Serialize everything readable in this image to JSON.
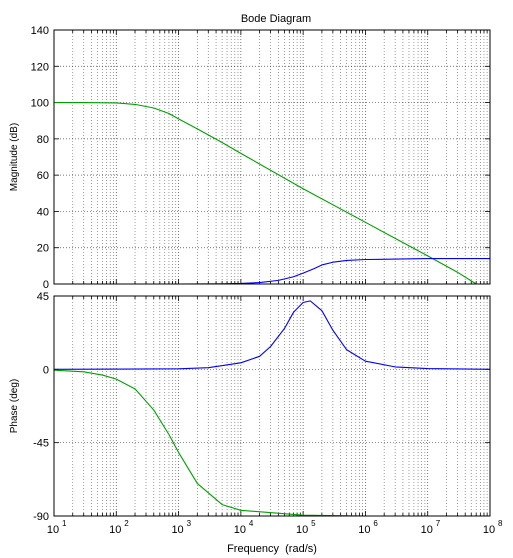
{
  "chart_data": [
    {
      "type": "line",
      "title": "Bode Diagram",
      "xlabel": "",
      "ylabel": "Magnitude (dB)",
      "x_scale": "log",
      "xlim": [
        10,
        100000000
      ],
      "ylim": [
        0,
        140
      ],
      "y_ticks": [
        "0",
        "20",
        "40",
        "60",
        "80",
        "100",
        "120",
        "140"
      ],
      "grid": true,
      "series": [
        {
          "color": "#00a000",
          "x": [
            10,
            30,
            100,
            200,
            400,
            700,
            1000,
            2000,
            5000,
            10000,
            100000,
            1000000,
            10000000,
            30000000,
            60000000
          ],
          "y": [
            100,
            100,
            99.8,
            99,
            97,
            94,
            91,
            85.5,
            78,
            72,
            52.5,
            34,
            15.5,
            6.5,
            0
          ]
        },
        {
          "color": "#0000ff",
          "x": [
            10,
            1000,
            5000,
            10000,
            20000,
            40000,
            70000,
            100000,
            150000,
            200000,
            300000,
            500000,
            1000000,
            10000000,
            100000000
          ],
          "y": [
            0,
            0,
            0.1,
            0.3,
            0.8,
            2,
            4,
            6,
            8.5,
            10.5,
            12,
            13,
            13.5,
            14,
            14
          ]
        }
      ]
    },
    {
      "type": "line",
      "xlabel": "Frequency  (rad/s)",
      "ylabel": "Phase (deg)",
      "x_scale": "log",
      "xlim": [
        10,
        100000000
      ],
      "ylim": [
        -90,
        45
      ],
      "y_ticks": [
        "-90",
        "-45",
        "0",
        "45"
      ],
      "x_ticks": [
        {
          "base": "10",
          "exp": "1"
        },
        {
          "base": "10",
          "exp": "2"
        },
        {
          "base": "10",
          "exp": "3"
        },
        {
          "base": "10",
          "exp": "4"
        },
        {
          "base": "10",
          "exp": "5"
        },
        {
          "base": "10",
          "exp": "6"
        },
        {
          "base": "10",
          "exp": "7"
        },
        {
          "base": "10",
          "exp": "8"
        }
      ],
      "grid": true,
      "series": [
        {
          "color": "#00a000",
          "x": [
            10,
            30,
            60,
            100,
            200,
            400,
            700,
            1000,
            2000,
            5000,
            10000,
            100000,
            1000000,
            100000000
          ],
          "y": [
            -0.5,
            -1.5,
            -3.5,
            -6,
            -12,
            -25,
            -40,
            -51,
            -70,
            -83,
            -86.5,
            -89.5,
            -90,
            -90
          ]
        },
        {
          "color": "#0000ff",
          "x": [
            10,
            1000,
            3000,
            10000,
            20000,
            30000,
            50000,
            70000,
            100000,
            130000,
            200000,
            300000,
            500000,
            1000000,
            3000000,
            10000000,
            100000000
          ],
          "y": [
            0,
            0.3,
            1,
            4,
            8,
            14,
            25,
            35,
            41,
            42,
            36,
            24,
            12,
            5,
            1.5,
            0.5,
            0
          ]
        }
      ]
    }
  ]
}
